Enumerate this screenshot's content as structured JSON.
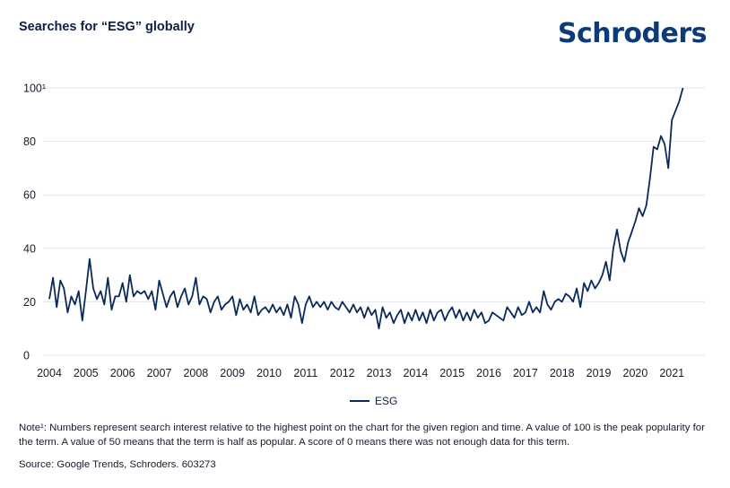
{
  "header": {
    "title": "Searches for “ESG” globally",
    "logo": "Schroders"
  },
  "chart_data": {
    "type": "line",
    "title": "Searches for “ESG” globally",
    "xlabel": "",
    "ylabel": "",
    "ylim": [
      0,
      100
    ],
    "yticks": [
      0,
      20,
      40,
      60,
      80,
      100
    ],
    "ytick_labels": [
      "0",
      "20",
      "40",
      "60",
      "80",
      "100¹"
    ],
    "xlim": [
      2004,
      2021.9
    ],
    "xticks": [
      "2004",
      "2005",
      "2006",
      "2007",
      "2008",
      "2009",
      "2010",
      "2011",
      "2012",
      "2013",
      "2014",
      "2015",
      "2016",
      "2017",
      "2018",
      "2019",
      "2020",
      "2021"
    ],
    "grid": true,
    "legend_position": "bottom",
    "color": "#0b2a5a",
    "series": [
      {
        "name": "ESG",
        "points": [
          [
            2004.0,
            21
          ],
          [
            2004.1,
            29
          ],
          [
            2004.2,
            18
          ],
          [
            2004.3,
            28
          ],
          [
            2004.4,
            25
          ],
          [
            2004.5,
            16
          ],
          [
            2004.6,
            22
          ],
          [
            2004.7,
            19
          ],
          [
            2004.8,
            24
          ],
          [
            2004.9,
            13
          ],
          [
            2005.0,
            24
          ],
          [
            2005.1,
            36
          ],
          [
            2005.2,
            25
          ],
          [
            2005.3,
            21
          ],
          [
            2005.4,
            24
          ],
          [
            2005.5,
            19
          ],
          [
            2005.6,
            29
          ],
          [
            2005.7,
            17
          ],
          [
            2005.8,
            22
          ],
          [
            2005.9,
            22
          ],
          [
            2006.0,
            27
          ],
          [
            2006.1,
            20
          ],
          [
            2006.2,
            30
          ],
          [
            2006.3,
            22
          ],
          [
            2006.4,
            24
          ],
          [
            2006.5,
            23
          ],
          [
            2006.6,
            24
          ],
          [
            2006.7,
            21
          ],
          [
            2006.8,
            24
          ],
          [
            2006.9,
            17
          ],
          [
            2007.0,
            28
          ],
          [
            2007.1,
            23
          ],
          [
            2007.2,
            18
          ],
          [
            2007.3,
            22
          ],
          [
            2007.4,
            24
          ],
          [
            2007.5,
            18
          ],
          [
            2007.6,
            22
          ],
          [
            2007.7,
            25
          ],
          [
            2007.8,
            19
          ],
          [
            2007.9,
            22
          ],
          [
            2008.0,
            29
          ],
          [
            2008.1,
            19
          ],
          [
            2008.2,
            22
          ],
          [
            2008.3,
            21
          ],
          [
            2008.4,
            16
          ],
          [
            2008.5,
            20
          ],
          [
            2008.6,
            22
          ],
          [
            2008.7,
            17
          ],
          [
            2008.8,
            19
          ],
          [
            2008.9,
            20
          ],
          [
            2009.0,
            22
          ],
          [
            2009.1,
            15
          ],
          [
            2009.2,
            21
          ],
          [
            2009.3,
            17
          ],
          [
            2009.4,
            19
          ],
          [
            2009.5,
            16
          ],
          [
            2009.6,
            22
          ],
          [
            2009.7,
            15
          ],
          [
            2009.8,
            17
          ],
          [
            2009.9,
            18
          ],
          [
            2010.0,
            16
          ],
          [
            2010.1,
            19
          ],
          [
            2010.2,
            16
          ],
          [
            2010.3,
            18
          ],
          [
            2010.4,
            15
          ],
          [
            2010.5,
            19
          ],
          [
            2010.6,
            14
          ],
          [
            2010.7,
            22
          ],
          [
            2010.8,
            19
          ],
          [
            2010.9,
            12
          ],
          [
            2011.0,
            19
          ],
          [
            2011.1,
            22
          ],
          [
            2011.2,
            18
          ],
          [
            2011.3,
            20
          ],
          [
            2011.4,
            18
          ],
          [
            2011.5,
            20
          ],
          [
            2011.6,
            17
          ],
          [
            2011.7,
            20
          ],
          [
            2011.8,
            18
          ],
          [
            2011.9,
            17
          ],
          [
            2012.0,
            20
          ],
          [
            2012.1,
            18
          ],
          [
            2012.2,
            16
          ],
          [
            2012.3,
            19
          ],
          [
            2012.4,
            16
          ],
          [
            2012.5,
            18
          ],
          [
            2012.6,
            14
          ],
          [
            2012.7,
            18
          ],
          [
            2012.8,
            15
          ],
          [
            2012.9,
            17
          ],
          [
            2013.0,
            10
          ],
          [
            2013.1,
            18
          ],
          [
            2013.2,
            14
          ],
          [
            2013.3,
            16
          ],
          [
            2013.4,
            12
          ],
          [
            2013.5,
            15
          ],
          [
            2013.6,
            17
          ],
          [
            2013.7,
            12
          ],
          [
            2013.8,
            16
          ],
          [
            2013.9,
            13
          ],
          [
            2014.0,
            17
          ],
          [
            2014.1,
            13
          ],
          [
            2014.2,
            16
          ],
          [
            2014.3,
            12
          ],
          [
            2014.4,
            17
          ],
          [
            2014.5,
            13
          ],
          [
            2014.6,
            16
          ],
          [
            2014.7,
            17
          ],
          [
            2014.8,
            13
          ],
          [
            2014.9,
            16
          ],
          [
            2015.0,
            18
          ],
          [
            2015.1,
            14
          ],
          [
            2015.2,
            17
          ],
          [
            2015.3,
            13
          ],
          [
            2015.4,
            16
          ],
          [
            2015.5,
            13
          ],
          [
            2015.6,
            17
          ],
          [
            2015.7,
            14
          ],
          [
            2015.8,
            16
          ],
          [
            2015.9,
            12
          ],
          [
            2016.0,
            13
          ],
          [
            2016.1,
            16
          ],
          [
            2016.2,
            15
          ],
          [
            2016.3,
            14
          ],
          [
            2016.4,
            13
          ],
          [
            2016.5,
            18
          ],
          [
            2016.6,
            16
          ],
          [
            2016.7,
            14
          ],
          [
            2016.8,
            18
          ],
          [
            2016.9,
            15
          ],
          [
            2017.0,
            16
          ],
          [
            2017.1,
            20
          ],
          [
            2017.2,
            16
          ],
          [
            2017.3,
            18
          ],
          [
            2017.4,
            16
          ],
          [
            2017.5,
            24
          ],
          [
            2017.6,
            19
          ],
          [
            2017.7,
            17
          ],
          [
            2017.8,
            20
          ],
          [
            2017.9,
            21
          ],
          [
            2018.0,
            20
          ],
          [
            2018.1,
            23
          ],
          [
            2018.2,
            22
          ],
          [
            2018.3,
            20
          ],
          [
            2018.4,
            25
          ],
          [
            2018.5,
            18
          ],
          [
            2018.6,
            27
          ],
          [
            2018.7,
            24
          ],
          [
            2018.8,
            28
          ],
          [
            2018.9,
            25
          ],
          [
            2019.0,
            27
          ],
          [
            2019.1,
            30
          ],
          [
            2019.2,
            35
          ],
          [
            2019.3,
            28
          ],
          [
            2019.4,
            40
          ],
          [
            2019.5,
            47
          ],
          [
            2019.6,
            39
          ],
          [
            2019.7,
            35
          ],
          [
            2019.8,
            42
          ],
          [
            2019.9,
            46
          ],
          [
            2020.0,
            50
          ],
          [
            2020.1,
            55
          ],
          [
            2020.2,
            52
          ],
          [
            2020.3,
            56
          ],
          [
            2020.4,
            66
          ],
          [
            2020.5,
            78
          ],
          [
            2020.6,
            77
          ],
          [
            2020.7,
            82
          ],
          [
            2020.8,
            79
          ],
          [
            2020.9,
            70
          ],
          [
            2021.0,
            88
          ],
          [
            2021.2,
            95
          ],
          [
            2021.3,
            100
          ]
        ]
      }
    ]
  },
  "legend": {
    "label": "ESG"
  },
  "footer": {
    "note": "Note¹: Numbers represent search interest relative to the highest point on the chart for the given region and time. A value of 100 is the peak popularity for the term. A value of 50 means that the term is half as popular. A score of 0 means there was not enough data for this term.",
    "source": "Source: Google Trends, Schroders. 603273"
  }
}
